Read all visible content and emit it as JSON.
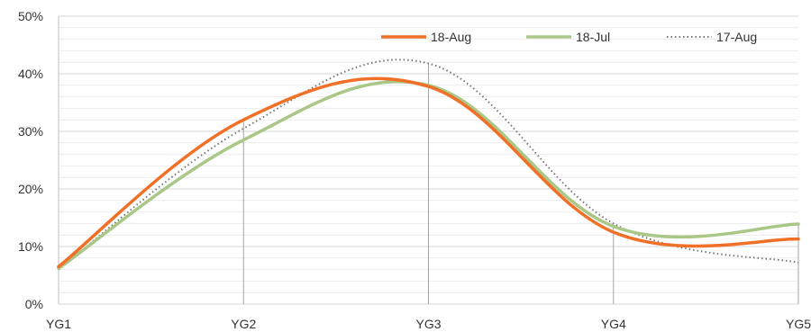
{
  "chart_data": {
    "type": "line",
    "title": "",
    "xlabel": "",
    "ylabel": "",
    "categories": [
      "YG1",
      "YG2",
      "YG3",
      "YG4",
      "YG5"
    ],
    "ylim": [
      0,
      50
    ],
    "yticks": [
      0,
      10,
      20,
      30,
      40,
      50
    ],
    "y_tick_labels": [
      "0%",
      "10%",
      "20%",
      "30%",
      "40%",
      "50%"
    ],
    "grid": true,
    "legend_position": "top-right",
    "series": [
      {
        "name": "18-Aug",
        "values": [
          6.5,
          32.0,
          37.8,
          12.5,
          11.3
        ],
        "color": "#f07027",
        "style": "solid"
      },
      {
        "name": "18-Jul",
        "values": [
          6.2,
          28.5,
          38.0,
          13.5,
          13.9
        ],
        "color": "#a9c786",
        "style": "solid"
      },
      {
        "name": "17-Aug",
        "values": [
          6.0,
          30.5,
          41.8,
          14.0,
          7.2
        ],
        "color": "#767676",
        "style": "dotted"
      }
    ]
  }
}
